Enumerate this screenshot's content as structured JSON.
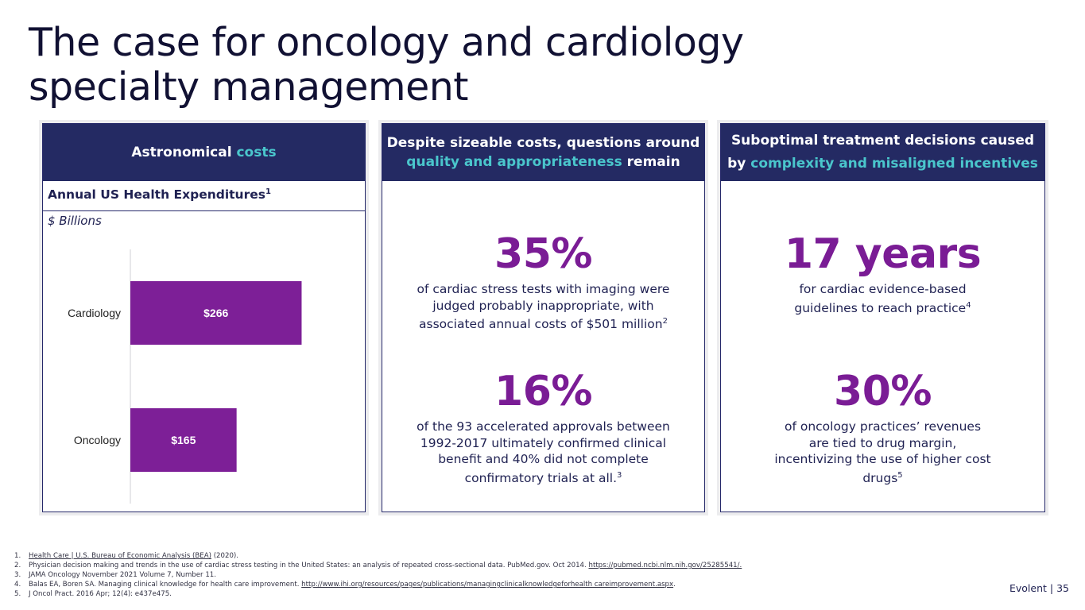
{
  "title": {
    "line1": "The case for oncology and cardiology",
    "line2": "specialty management"
  },
  "card1": {
    "header_plain": "Astronomical ",
    "header_accent": "costs",
    "chart_title": "Annual US Health Expenditures",
    "chart_title_sup": "1",
    "units": "$ Billions"
  },
  "chart_data": {
    "type": "bar",
    "orientation": "horizontal",
    "title": "Annual US Health Expenditures",
    "ylabel": "$ Billions",
    "categories": [
      "Cardiology",
      "Oncology"
    ],
    "values": [
      266,
      165
    ],
    "data_labels": [
      "$266",
      "$165"
    ],
    "xlim": [
      0,
      300
    ],
    "grid": false,
    "colors": {
      "bar": "#7d1f97"
    }
  },
  "card2": {
    "header_line1": "Despite sizeable costs, questions around",
    "header_accent": "quality and appropriateness",
    "header_tail": " remain",
    "stat1": {
      "value": "35%",
      "text": "of cardiac stress tests with imaging were judged probably inappropriate, with associated annual costs of $501 million",
      "sup": "2"
    },
    "stat2": {
      "value": "16%",
      "text": "of the 93 accelerated approvals between 1992-2017 ultimately confirmed clinical benefit and 40% did not complete confirmatory trials at all.",
      "sup": "3"
    }
  },
  "card3": {
    "header_line1": "Suboptimal treatment decisions caused",
    "header_line2_plain": "by ",
    "header_accent": "complexity and misaligned incentives",
    "stat1": {
      "value": "17 years",
      "text": "for cardiac evidence-based guidelines to reach practice",
      "sup": "4"
    },
    "stat2": {
      "value": "30%",
      "text": "of oncology practices’ revenues are tied to drug margin, incentivizing the use of higher cost drugs",
      "sup": "5"
    }
  },
  "footnotes": [
    {
      "num": "1.",
      "link": "Health Care | U.S. Bureau of Economic Analysis (BEA)",
      "text": " (2020).",
      "link2": "",
      "tail": ""
    },
    {
      "num": "2.",
      "link": "",
      "text": "Physician decision making and trends in the use of cardiac stress testing in the United States: an analysis of repeated cross-sectional data. PubMed.gov. Oct 2014. ",
      "link2": "https://pubmed.ncbi.nlm.nih.gov/25285541/.",
      "tail": ""
    },
    {
      "num": "3.",
      "link": "",
      "text": "JAMA Oncology November 2021 Volume 7, Number 11.",
      "link2": "",
      "tail": ""
    },
    {
      "num": "4.",
      "link": "",
      "text": "Balas EA, Boren SA. Managing clinical knowledge for health care improvement. ",
      "link2": "http://www.ihi.org/resources/pages/publications/managingclinicalknowledgeforhealth careimprovement.aspx",
      "tail": "."
    },
    {
      "num": "5.",
      "link": "",
      "text": "J Oncol Pract. 2016 Apr; 12(4): e437e475.",
      "link2": "",
      "tail": ""
    }
  ],
  "footer": {
    "brand": "Evolent",
    "separator": "|",
    "page": "35"
  },
  "colors": {
    "navy": "#242a63",
    "teal": "#4ac6cc",
    "purple": "#7a1c95",
    "bar": "#7d1f97"
  }
}
